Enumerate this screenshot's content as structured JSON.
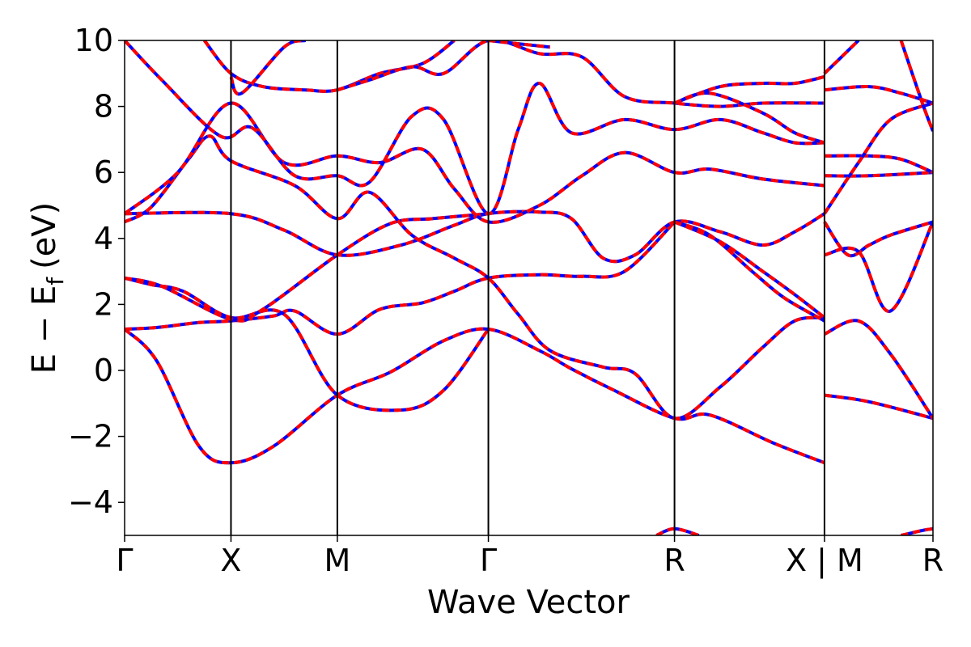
{
  "chart_data": {
    "type": "line",
    "xlabel": "Wave Vector",
    "ylabel_main": "E − E",
    "ylabel_sub": "f",
    "ylabel_unit": "(eV)",
    "ylim": [
      -5,
      10
    ],
    "yticks": [
      {
        "value": -4,
        "label": "−4"
      },
      {
        "value": -2,
        "label": "−2"
      },
      {
        "value": 0,
        "label": "0"
      },
      {
        "value": 2,
        "label": "2"
      },
      {
        "value": 4,
        "label": "4"
      },
      {
        "value": 6,
        "label": "6"
      },
      {
        "value": 8,
        "label": "8"
      },
      {
        "value": 10,
        "label": "10"
      }
    ],
    "x_range": [
      0,
      7.6
    ],
    "kpoints": [
      {
        "x": 0,
        "label": "Γ"
      },
      {
        "x": 1.0,
        "label": "X"
      },
      {
        "x": 2.0,
        "label": "M"
      },
      {
        "x": 3.42,
        "label": "Γ"
      },
      {
        "x": 5.17,
        "label": "R"
      },
      {
        "x": 6.58,
        "label": "X | M"
      },
      {
        "x": 7.6,
        "label": "R"
      }
    ],
    "line_colors": {
      "band": "#ff0000",
      "dash": "#0000ff"
    },
    "bands": [
      [
        [
          0,
          1.25
        ],
        [
          0.3,
          0.3
        ],
        [
          0.7,
          -2.3
        ],
        [
          1.0,
          -2.8
        ],
        [
          1.4,
          -2.3
        ],
        [
          2.0,
          -0.75
        ],
        [
          2.5,
          -0.05
        ],
        [
          3.0,
          0.9
        ],
        [
          3.42,
          1.25
        ],
        [
          3.9,
          0.6
        ],
        [
          4.2,
          0.05
        ],
        [
          4.6,
          -0.6
        ],
        [
          5.17,
          -1.45
        ],
        [
          5.5,
          -1.35
        ],
        [
          6.1,
          -2.2
        ],
        [
          6.58,
          -2.8
        ]
      ],
      [
        [
          6.58,
          -0.75
        ],
        [
          7.0,
          -0.95
        ],
        [
          7.6,
          -1.45
        ]
      ],
      [
        [
          0,
          1.25
        ],
        [
          0.3,
          1.3
        ],
        [
          0.7,
          1.45
        ],
        [
          1.0,
          1.5
        ],
        [
          1.4,
          1.65
        ],
        [
          1.6,
          1.8
        ],
        [
          2.0,
          1.1
        ],
        [
          2.4,
          1.85
        ],
        [
          2.8,
          2.05
        ],
        [
          3.1,
          2.4
        ],
        [
          3.42,
          2.8
        ],
        [
          3.9,
          2.9
        ],
        [
          4.3,
          2.85
        ],
        [
          4.7,
          3.0
        ],
        [
          5.17,
          4.5
        ]
      ],
      [
        [
          0,
          2.8
        ],
        [
          0.25,
          2.6
        ],
        [
          0.55,
          2.4
        ],
        [
          1.0,
          1.6
        ],
        [
          1.5,
          1.7
        ],
        [
          2.0,
          -0.75
        ],
        [
          2.6,
          -1.2
        ],
        [
          3.0,
          -0.6
        ],
        [
          3.42,
          1.25
        ]
      ],
      [
        [
          0,
          2.8
        ],
        [
          0.35,
          2.55
        ],
        [
          1.0,
          1.55
        ],
        [
          1.3,
          1.85
        ],
        [
          2.0,
          3.5
        ],
        [
          2.5,
          4.45
        ],
        [
          2.9,
          4.6
        ],
        [
          3.42,
          4.75
        ]
      ],
      [
        [
          0,
          4.75
        ],
        [
          1.0,
          4.75
        ],
        [
          1.5,
          4.25
        ],
        [
          2.0,
          3.5
        ],
        [
          2.6,
          3.8
        ],
        [
          3.1,
          4.4
        ],
        [
          3.42,
          4.75
        ],
        [
          3.9,
          4.8
        ],
        [
          4.2,
          4.6
        ],
        [
          4.5,
          3.4
        ],
        [
          4.8,
          3.5
        ],
        [
          5.17,
          4.5
        ],
        [
          5.6,
          4.2
        ],
        [
          6.0,
          3.8
        ],
        [
          6.3,
          4.2
        ],
        [
          6.58,
          4.75
        ]
      ],
      [
        [
          0,
          4.5
        ],
        [
          0.25,
          4.95
        ],
        [
          0.6,
          6.4
        ],
        [
          0.8,
          7.1
        ],
        [
          1.0,
          6.35
        ],
        [
          1.6,
          5.6
        ],
        [
          2.0,
          4.6
        ],
        [
          2.3,
          5.4
        ],
        [
          2.7,
          4.1
        ],
        [
          3.1,
          3.4
        ],
        [
          3.42,
          2.8
        ],
        [
          3.7,
          1.7
        ],
        [
          4.0,
          0.6
        ],
        [
          4.5,
          0.1
        ],
        [
          4.8,
          -0.1
        ],
        [
          5.17,
          -1.45
        ],
        [
          5.6,
          -0.5
        ],
        [
          6.0,
          0.7
        ],
        [
          6.3,
          1.5
        ],
        [
          6.58,
          1.6
        ]
      ],
      [
        [
          0,
          4.75
        ],
        [
          0.5,
          6.0
        ],
        [
          1.0,
          8.1
        ],
        [
          1.5,
          6.3
        ],
        [
          2.0,
          6.5
        ],
        [
          2.4,
          6.3
        ],
        [
          2.8,
          6.7
        ],
        [
          3.1,
          5.5
        ],
        [
          3.42,
          4.5
        ],
        [
          3.9,
          5.0
        ],
        [
          4.3,
          5.9
        ],
        [
          4.7,
          6.6
        ],
        [
          5.17,
          6.0
        ],
        [
          5.5,
          6.1
        ],
        [
          6.0,
          5.8
        ],
        [
          6.58,
          5.6
        ]
      ],
      [
        [
          0,
          10.0
        ],
        [
          0.35,
          8.8
        ],
        [
          0.9,
          7.1
        ],
        [
          1.2,
          7.35
        ],
        [
          1.6,
          5.9
        ],
        [
          2.0,
          5.9
        ],
        [
          2.3,
          5.7
        ],
        [
          2.7,
          7.7
        ],
        [
          3.0,
          7.6
        ],
        [
          3.42,
          4.75
        ],
        [
          3.7,
          7.3
        ],
        [
          3.9,
          8.7
        ],
        [
          4.2,
          7.2
        ],
        [
          4.7,
          7.6
        ],
        [
          5.17,
          7.3
        ],
        [
          5.6,
          7.6
        ],
        [
          6.0,
          7.2
        ],
        [
          6.3,
          6.9
        ],
        [
          6.58,
          6.9
        ]
      ],
      [
        [
          0.75,
          10.0
        ],
        [
          1.0,
          9.0
        ],
        [
          1.3,
          8.6
        ],
        [
          1.7,
          8.5
        ],
        [
          2.0,
          8.5
        ],
        [
          2.4,
          9.0
        ],
        [
          2.8,
          9.3
        ],
        [
          3.1,
          10.0
        ]
      ],
      [
        [
          1.0,
          8.9
        ],
        [
          1.1,
          8.4
        ],
        [
          1.5,
          9.8
        ],
        [
          1.7,
          10.0
        ]
      ],
      [
        [
          2.0,
          8.5
        ],
        [
          2.3,
          8.8
        ],
        [
          2.7,
          9.2
        ],
        [
          3.0,
          9.0
        ],
        [
          3.42,
          10.0
        ],
        [
          3.9,
          9.6
        ],
        [
          4.3,
          9.5
        ],
        [
          4.7,
          8.3
        ],
        [
          5.17,
          8.1
        ],
        [
          5.6,
          8.0
        ],
        [
          6.0,
          8.1
        ],
        [
          6.58,
          8.1
        ]
      ],
      [
        [
          3.42,
          10.0
        ],
        [
          3.7,
          9.9
        ],
        [
          4.0,
          9.8
        ]
      ],
      [
        [
          5.17,
          8.1
        ],
        [
          5.6,
          8.6
        ],
        [
          6.0,
          8.7
        ],
        [
          6.3,
          8.7
        ],
        [
          6.58,
          8.9
        ]
      ],
      [
        [
          5.17,
          8.1
        ],
        [
          5.5,
          8.4
        ],
        [
          6.0,
          7.8
        ],
        [
          6.3,
          7.2
        ],
        [
          6.58,
          6.9
        ]
      ],
      [
        [
          5.17,
          4.5
        ],
        [
          5.5,
          4.1
        ],
        [
          5.9,
          3.0
        ],
        [
          6.2,
          2.2
        ],
        [
          6.58,
          1.5
        ]
      ],
      [
        [
          5.17,
          4.5
        ],
        [
          5.6,
          3.9
        ],
        [
          6.0,
          3.0
        ],
        [
          6.3,
          2.3
        ],
        [
          6.58,
          1.6
        ]
      ],
      [
        [
          6.58,
          4.5
        ],
        [
          6.8,
          3.5
        ],
        [
          7.0,
          3.8
        ],
        [
          7.2,
          4.1
        ],
        [
          7.6,
          4.5
        ]
      ],
      [
        [
          6.58,
          3.5
        ],
        [
          6.9,
          3.6
        ],
        [
          7.2,
          1.8
        ],
        [
          7.6,
          4.5
        ]
      ],
      [
        [
          6.58,
          1.1
        ],
        [
          6.9,
          1.5
        ],
        [
          7.2,
          0.5
        ],
        [
          7.6,
          -1.45
        ]
      ],
      [
        [
          6.58,
          5.9
        ],
        [
          7.0,
          5.9
        ],
        [
          7.6,
          6.0
        ]
      ],
      [
        [
          6.58,
          6.5
        ],
        [
          7.0,
          6.5
        ],
        [
          7.3,
          6.4
        ],
        [
          7.6,
          6.0
        ]
      ],
      [
        [
          6.58,
          4.75
        ],
        [
          6.9,
          6.3
        ],
        [
          7.2,
          7.6
        ],
        [
          7.6,
          8.1
        ]
      ],
      [
        [
          6.58,
          8.5
        ],
        [
          7.0,
          8.6
        ],
        [
          7.3,
          8.4
        ],
        [
          7.6,
          8.1
        ]
      ],
      [
        [
          6.58,
          9.0
        ],
        [
          6.9,
          10.0
        ]
      ],
      [
        [
          7.3,
          10.0
        ],
        [
          7.5,
          8.1
        ],
        [
          7.6,
          7.25
        ]
      ],
      [
        [
          5.0,
          -5.0
        ],
        [
          5.17,
          -4.8
        ],
        [
          5.4,
          -5.0
        ]
      ],
      [
        [
          7.3,
          -5.0
        ],
        [
          7.5,
          -4.85
        ],
        [
          7.6,
          -4.8
        ]
      ]
    ]
  }
}
